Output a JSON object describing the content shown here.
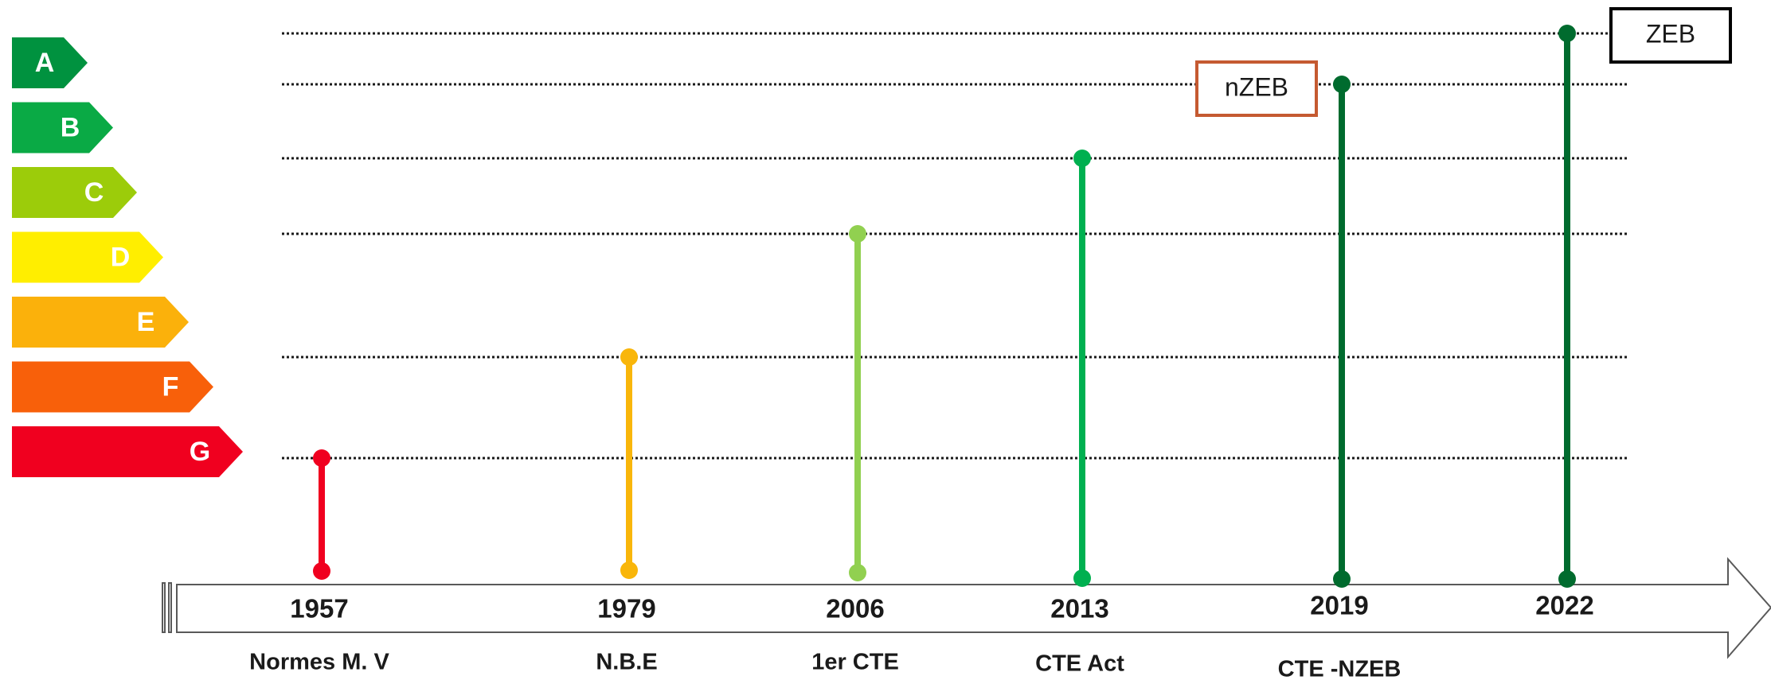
{
  "energy_labels": [
    {
      "letter": "A",
      "color": "#00923f"
    },
    {
      "letter": "B",
      "color": "#0aaa45"
    },
    {
      "letter": "C",
      "color": "#9ccc0a"
    },
    {
      "letter": "D",
      "color": "#ffee00"
    },
    {
      "letter": "E",
      "color": "#fbb10b"
    },
    {
      "letter": "F",
      "color": "#f8600a"
    },
    {
      "letter": "G",
      "color": "#f0001f"
    }
  ],
  "milestones": [
    {
      "year": "1957",
      "regulation": "Normes M. V",
      "label": "G",
      "color": "#f0001f"
    },
    {
      "year": "1979",
      "regulation": "N.B.E",
      "label": "E",
      "color": "#f9b60a"
    },
    {
      "year": "2006",
      "regulation": "1er CTE",
      "label": "D",
      "color": "#91d050"
    },
    {
      "year": "2013",
      "regulation": "CTE Act",
      "label": "B",
      "color": "#00b050"
    },
    {
      "year": "2019",
      "regulation": "CTE -NZEB",
      "label": "nZEB",
      "color": "#006b2e"
    },
    {
      "year": "2022",
      "regulation": "",
      "label": "ZEB",
      "color": "#006b2e"
    }
  ],
  "callouts": {
    "nzeb": {
      "text": "nZEB",
      "border_color": "#c55a31"
    },
    "zeb": {
      "text": "ZEB",
      "border_color": "#000000"
    }
  },
  "arrow": {
    "color": "#595959"
  }
}
